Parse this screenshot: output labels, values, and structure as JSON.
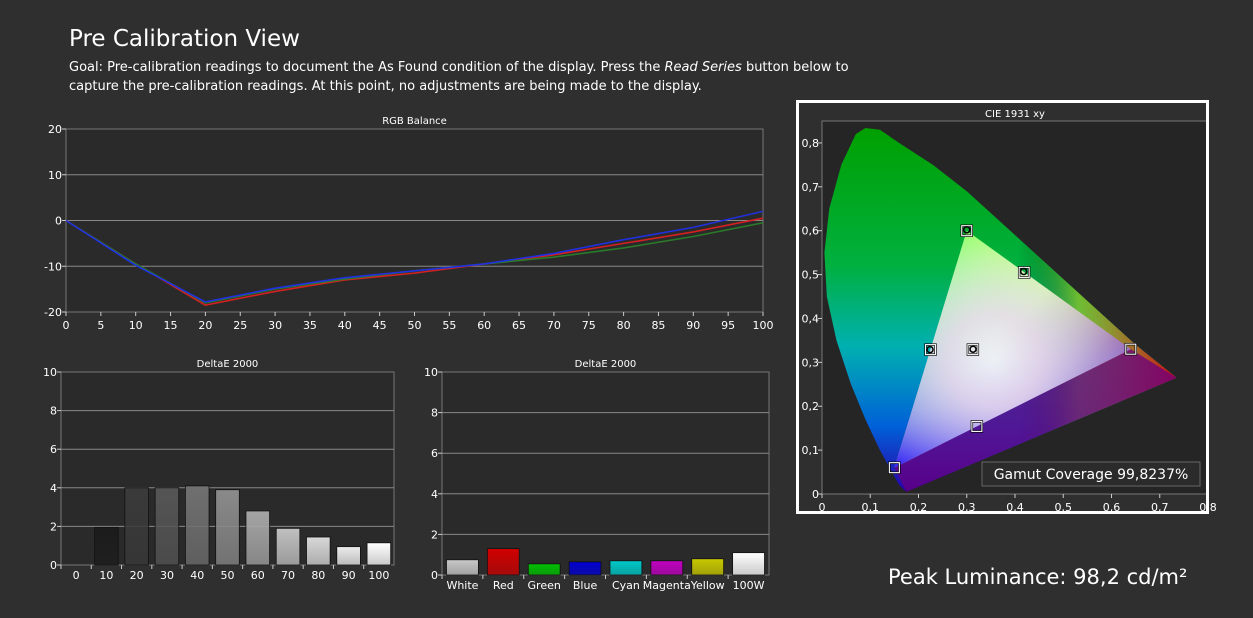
{
  "page": {
    "title": "Pre Calibration View",
    "goal_prefix": "Goal: Pre-calibration readings to document the As Found condition of the display. Press the ",
    "goal_em": "Read Series",
    "goal_suffix": " button below to capture the pre-calibration readings. At this point, no adjustments are being made to the display.",
    "peak_luminance": "Peak Luminance: 98,2 cd/m²"
  },
  "chart_data": [
    {
      "type": "line",
      "title": "RGB Balance",
      "x": [
        0,
        10,
        20,
        30,
        40,
        50,
        60,
        70,
        80,
        90,
        100
      ],
      "xticks": [
        "0",
        "5",
        "10",
        "15",
        "20",
        "25",
        "30",
        "35",
        "40",
        "45",
        "50",
        "55",
        "60",
        "65",
        "70",
        "75",
        "80",
        "85",
        "90",
        "95",
        "100"
      ],
      "yticks": [
        "20",
        "10",
        "0",
        "-10",
        "-20"
      ],
      "xlim": [
        0,
        100
      ],
      "ylim": [
        -20,
        20
      ],
      "series": [
        {
          "color": "#d42020",
          "values": [
            0,
            -9.5,
            -18.5,
            -15.5,
            -13,
            -11.5,
            -9.5,
            -7.5,
            -5,
            -2.5,
            0.5
          ]
        },
        {
          "color": "#2a7a2a",
          "values": [
            0,
            -9.5,
            -18.0,
            -15.0,
            -12.8,
            -11.0,
            -9.5,
            -8.0,
            -6.0,
            -3.5,
            -0.5
          ]
        },
        {
          "color": "#2030e0",
          "values": [
            0,
            -9.8,
            -17.8,
            -14.8,
            -12.5,
            -11.0,
            -9.5,
            -7.2,
            -4.2,
            -1.5,
            2.0
          ]
        }
      ]
    },
    {
      "type": "bar",
      "title": "DeltaE 2000",
      "categories": [
        "0",
        "10",
        "20",
        "30",
        "40",
        "50",
        "60",
        "70",
        "80",
        "90",
        "100"
      ],
      "values": [
        null,
        1.95,
        4.0,
        4.0,
        4.1,
        3.9,
        2.8,
        1.9,
        1.45,
        0.95,
        1.15
      ],
      "colors": [
        "#000000",
        "#1c1c1c",
        "#3a3a3a",
        "#555555",
        "#707070",
        "#8a8a8a",
        "#a5a5a5",
        "#c0c0c0",
        "#d8d8d8",
        "#ececec",
        "#ffffff"
      ],
      "yticks": [
        "10",
        "8",
        "6",
        "4",
        "2",
        "0"
      ],
      "ylim": [
        0,
        10
      ]
    },
    {
      "type": "bar",
      "title": "DeltaE 2000",
      "categories": [
        "White",
        "Red",
        "Green",
        "Blue",
        "Cyan",
        "Magenta",
        "Yellow",
        "100W"
      ],
      "values": [
        0.75,
        1.3,
        0.55,
        0.65,
        0.7,
        0.7,
        0.8,
        1.1
      ],
      "colors": [
        "#c8c8c8",
        "#d00000",
        "#00c000",
        "#0000d0",
        "#00c8c8",
        "#c000c0",
        "#c8c800",
        "#ffffff"
      ],
      "yticks": [
        "10",
        "8",
        "6",
        "4",
        "2",
        "0"
      ],
      "ylim": [
        0,
        10
      ]
    },
    {
      "type": "scatter",
      "title": "CIE 1931 xy",
      "xticks": [
        "0",
        "0,1",
        "0,2",
        "0,3",
        "0,4",
        "0,5",
        "0,6",
        "0,7",
        "0,8"
      ],
      "yticks": [
        "0,8",
        "0,7",
        "0,6",
        "0,5",
        "0,4",
        "0,3",
        "0,2",
        "0,1",
        "0"
      ],
      "xlim": [
        0,
        0.8
      ],
      "ylim": [
        0,
        0.85
      ],
      "gamut": [
        {
          "name": "red",
          "x": 0.64,
          "y": 0.33
        },
        {
          "name": "green",
          "x": 0.3,
          "y": 0.6
        },
        {
          "name": "blue",
          "x": 0.15,
          "y": 0.06
        }
      ],
      "targets": [
        {
          "x": 0.64,
          "y": 0.33
        },
        {
          "x": 0.3,
          "y": 0.6
        },
        {
          "x": 0.15,
          "y": 0.06
        },
        {
          "x": 0.225,
          "y": 0.329
        },
        {
          "x": 0.321,
          "y": 0.154
        },
        {
          "x": 0.419,
          "y": 0.505
        },
        {
          "x": 0.3127,
          "y": 0.329
        }
      ],
      "measured": [
        {
          "x": 0.224,
          "y": 0.329
        },
        {
          "x": 0.418,
          "y": 0.507
        },
        {
          "x": 0.313,
          "y": 0.33
        },
        {
          "x": 0.3,
          "y": 0.602
        }
      ],
      "gamut_coverage": "Gamut Coverage 99,8237%"
    }
  ]
}
